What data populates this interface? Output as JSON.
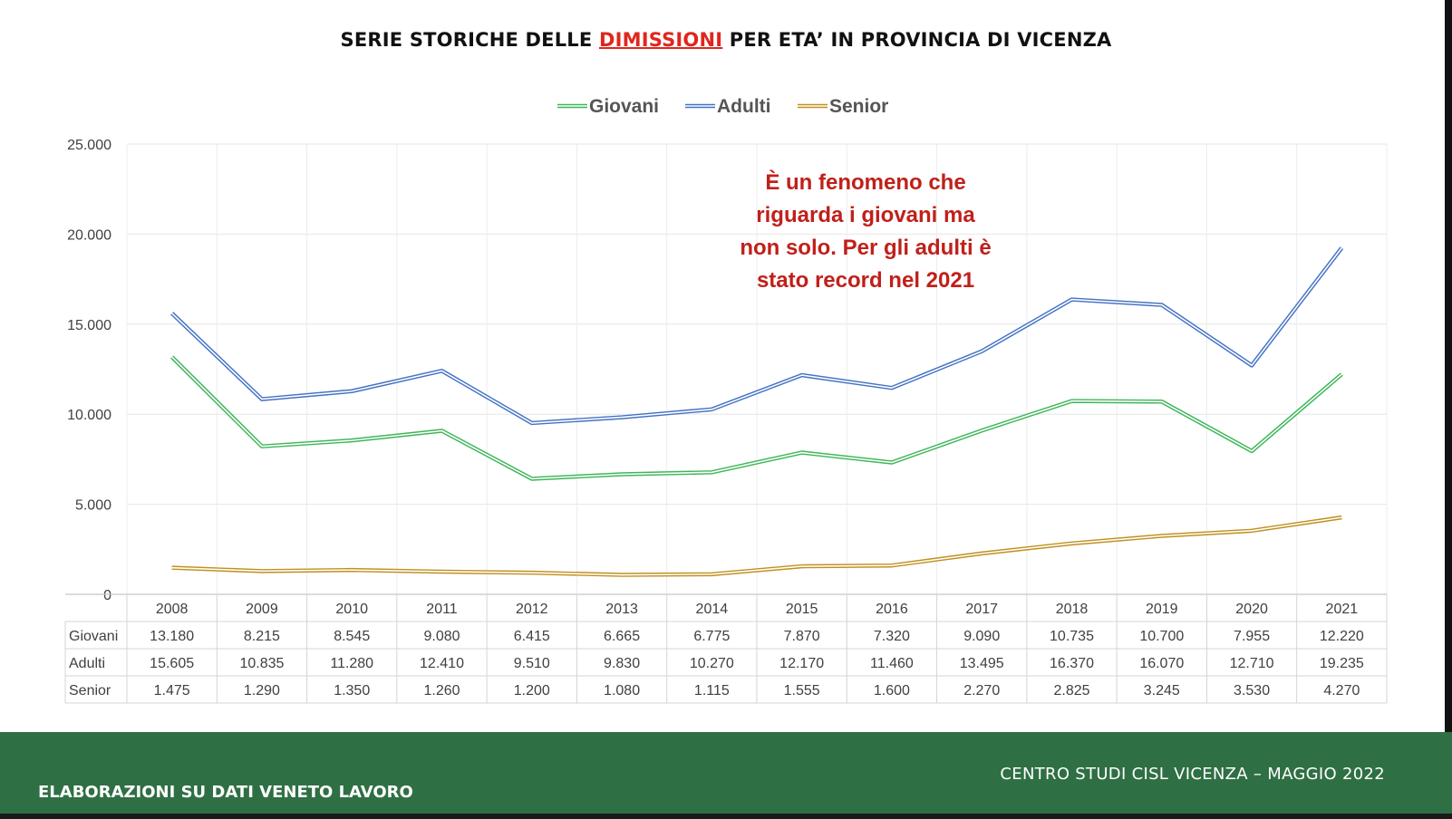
{
  "title": {
    "prefix": "SERIE STORICHE DELLE ",
    "highlight": "DIMISSIONI",
    "suffix": " PER ETA’ IN PROVINCIA DI VICENZA"
  },
  "annotation": {
    "lines": [
      "È un fenomeno che",
      "riguarda i giovani ma",
      "non solo. Per gli adulti è",
      "stato record nel 2021"
    ],
    "color": "#c0201a"
  },
  "footer": {
    "left": "ELABORAZIONI SU DATI VENETO LAVORO",
    "right": "CENTRO STUDI CISL VICENZA – MAGGIO 2022",
    "background": "#2f6f44"
  },
  "chart_data": {
    "type": "line",
    "categories": [
      "2008",
      "2009",
      "2010",
      "2011",
      "2012",
      "2013",
      "2014",
      "2015",
      "2016",
      "2017",
      "2018",
      "2019",
      "2020",
      "2021"
    ],
    "series": [
      {
        "name": "Giovani",
        "color": "#3fb65a",
        "values": [
          13180,
          8215,
          8545,
          9080,
          6415,
          6665,
          6775,
          7870,
          7320,
          9090,
          10735,
          10700,
          7955,
          12220
        ],
        "labels": [
          "13.180",
          "8.215",
          "8.545",
          "9.080",
          "6.415",
          "6.665",
          "6.775",
          "7.870",
          "7.320",
          "9.090",
          "10.735",
          "10.700",
          "7.955",
          "12.220"
        ]
      },
      {
        "name": "Adulti",
        "color": "#4472c4",
        "values": [
          15605,
          10835,
          11280,
          12410,
          9510,
          9830,
          10270,
          12170,
          11460,
          13495,
          16370,
          16070,
          12710,
          19235
        ],
        "labels": [
          "15.605",
          "10.835",
          "11.280",
          "12.410",
          "9.510",
          "9.830",
          "10.270",
          "12.170",
          "11.460",
          "13.495",
          "16.370",
          "16.070",
          "12.710",
          "19.235"
        ]
      },
      {
        "name": "Senior",
        "color": "#c09020",
        "values": [
          1475,
          1290,
          1350,
          1260,
          1200,
          1080,
          1115,
          1555,
          1600,
          2270,
          2825,
          3245,
          3530,
          4270
        ],
        "labels": [
          "1.475",
          "1.290",
          "1.350",
          "1.260",
          "1.200",
          "1.080",
          "1.115",
          "1.555",
          "1.600",
          "2.270",
          "2.825",
          "3.245",
          "3.530",
          "4.270"
        ]
      }
    ],
    "ylim": [
      0,
      25000
    ],
    "yticks": [
      0,
      5000,
      10000,
      15000,
      20000,
      25000
    ],
    "ytick_labels": [
      "0",
      "5.000",
      "10.000",
      "15.000",
      "20.000",
      "25.000"
    ],
    "grid": true,
    "legend": "top-center",
    "data_table": true
  }
}
